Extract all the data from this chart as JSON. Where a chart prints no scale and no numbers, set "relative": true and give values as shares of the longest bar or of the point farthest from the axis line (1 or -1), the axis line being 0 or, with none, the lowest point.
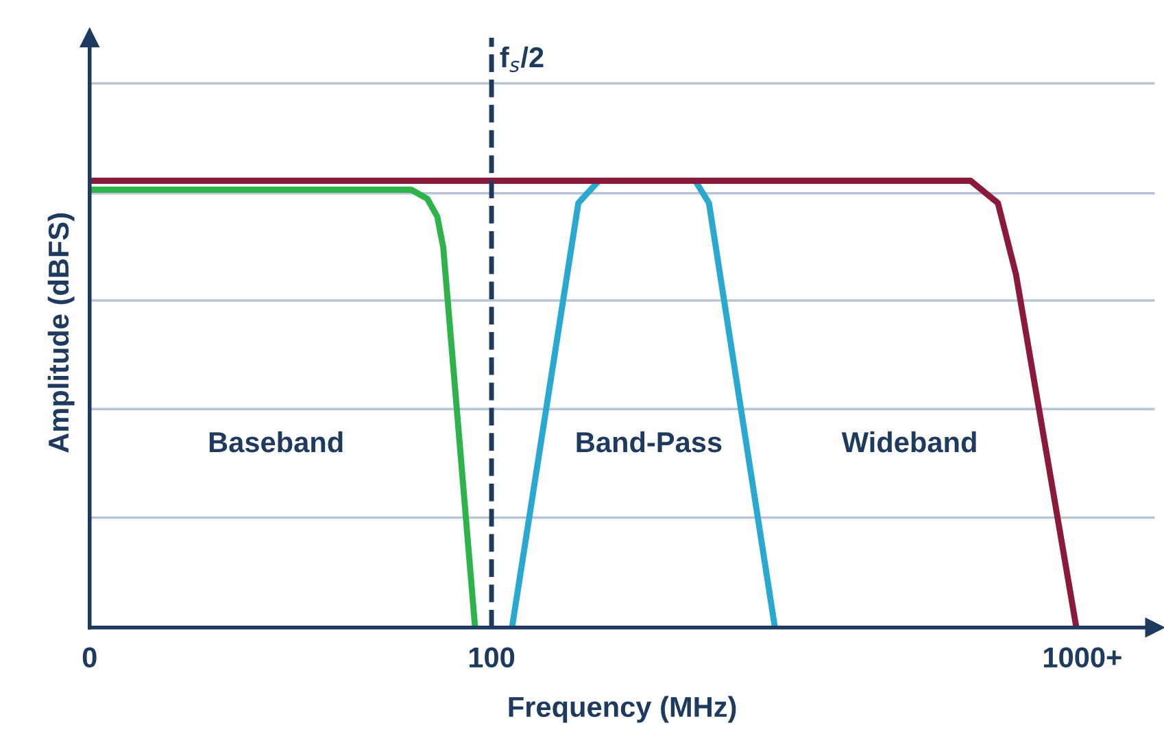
{
  "chart_data": {
    "type": "line",
    "relative": true,
    "xlabel": "Frequency (MHz)",
    "ylabel": "Amplitude (dBFS)",
    "xlim": [
      0,
      265
    ],
    "xticks": [
      0,
      100,
      {
        "value": 247,
        "label": "1000+"
      }
    ],
    "tick_labels": "x",
    "line_style": "solid",
    "marker": "none",
    "series": [
      {
        "color": "#2db34a",
        "x": [
          0,
          80,
          84,
          86.5,
          88,
          95.9
        ],
        "values": [
          0.98,
          0.98,
          0.96,
          0.92,
          0.85,
          0
        ]
      },
      {
        "color": "#29a8d0",
        "x": [
          105.1,
          121.6,
          126.7,
          150.7,
          154.1,
          170.5
        ],
        "values": [
          0,
          0.95,
          1.0,
          1.0,
          0.95,
          0
        ]
      },
      {
        "color": "#8b1a3a",
        "x": [
          0,
          219.2,
          226,
          230.5,
          245.5
        ],
        "values": [
          1.0,
          1.0,
          0.95,
          0.79,
          0
        ]
      }
    ],
    "ref_lines": [
      {
        "axis": "x",
        "value": 100,
        "label": "f$_{s}$/2",
        "color": "#1f3a5f",
        "line_style": "dashed"
      },
      {
        "axis": "y",
        "value": 0.246,
        "color": "#b8c4d6",
        "line_style": "solid"
      },
      {
        "axis": "y",
        "value": 0.489,
        "color": "#b8c4d6",
        "line_style": "solid"
      },
      {
        "axis": "y",
        "value": 0.732,
        "color": "#b8c4d6",
        "line_style": "solid"
      },
      {
        "axis": "y",
        "value": 0.972,
        "color": "#b8c4d6",
        "line_style": "solid"
      },
      {
        "axis": "y",
        "value": 1.218,
        "color": "#b8c4d6",
        "line_style": "solid"
      }
    ],
    "annotations": [
      "Baseband",
      "Band-Pass",
      "Wideband"
    ]
  }
}
